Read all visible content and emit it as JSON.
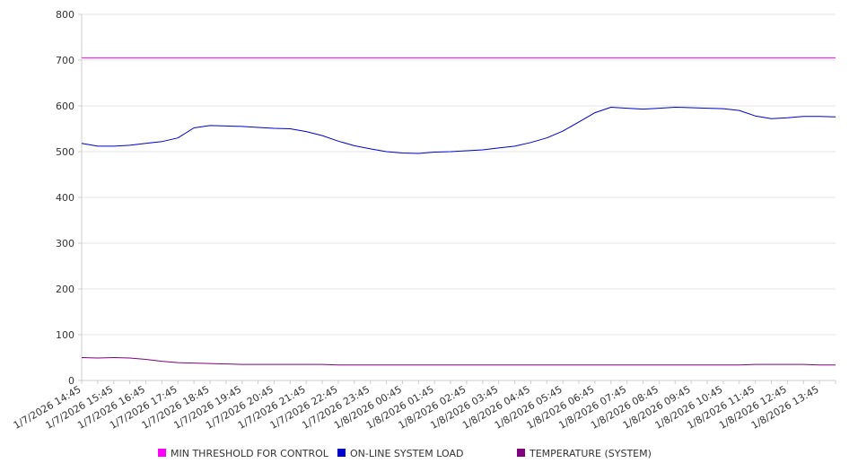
{
  "chart_data": {
    "type": "line",
    "ylim": [
      0,
      800
    ],
    "y_ticks": [
      "0",
      "100",
      "200",
      "300",
      "400",
      "500",
      "600",
      "700",
      "800"
    ],
    "x_tick_labels": [
      "1/7/2026 14:45",
      "1/7/2026 15:45",
      "1/7/2026 16:45",
      "1/7/2026 17:45",
      "1/7/2026 18:45",
      "1/7/2026 19:45",
      "1/7/2026 20:45",
      "1/7/2026 21:45",
      "1/7/2026 22:45",
      "1/7/2026 23:45",
      "1/8/2026 00:45",
      "1/8/2026 01:45",
      "1/8/2026 02:45",
      "1/8/2026 03:45",
      "1/8/2026 04:45",
      "1/8/2026 05:45",
      "1/8/2026 06:45",
      "1/8/2026 07:45",
      "1/8/2026 08:45",
      "1/8/2026 09:45",
      "1/8/2026 10:45",
      "1/8/2026 11:45",
      "1/8/2026 12:45",
      "1/8/2026 13:45"
    ],
    "x_points": [
      "1/7/2026 14:45",
      "1/7/2026 15:15",
      "1/7/2026 15:45",
      "1/7/2026 16:15",
      "1/7/2026 16:45",
      "1/7/2026 17:15",
      "1/7/2026 17:45",
      "1/7/2026 18:15",
      "1/7/2026 18:45",
      "1/7/2026 19:15",
      "1/7/2026 19:45",
      "1/7/2026 20:15",
      "1/7/2026 20:45",
      "1/7/2026 21:15",
      "1/7/2026 21:45",
      "1/7/2026 22:15",
      "1/7/2026 22:45",
      "1/7/2026 23:15",
      "1/7/2026 23:45",
      "1/8/2026 00:15",
      "1/8/2026 00:45",
      "1/8/2026 01:15",
      "1/8/2026 01:45",
      "1/8/2026 02:15",
      "1/8/2026 02:45",
      "1/8/2026 03:15",
      "1/8/2026 03:45",
      "1/8/2026 04:15",
      "1/8/2026 04:45",
      "1/8/2026 05:15",
      "1/8/2026 05:45",
      "1/8/2026 06:15",
      "1/8/2026 06:45",
      "1/8/2026 07:15",
      "1/8/2026 07:45",
      "1/8/2026 08:15",
      "1/8/2026 08:45",
      "1/8/2026 09:15",
      "1/8/2026 09:45",
      "1/8/2026 10:15",
      "1/8/2026 10:45",
      "1/8/2026 11:15",
      "1/8/2026 11:45",
      "1/8/2026 12:15",
      "1/8/2026 12:45",
      "1/8/2026 13:15",
      "1/8/2026 13:45",
      "1/8/2026 14:15"
    ],
    "grid": true,
    "legend_position": "bottom",
    "series": [
      {
        "name": "MIN THRESHOLD FOR CONTROL",
        "color": "#ff00ff",
        "values": [
          705,
          705,
          705,
          705,
          705,
          705,
          705,
          705,
          705,
          705,
          705,
          705,
          705,
          705,
          705,
          705,
          705,
          705,
          705,
          705,
          705,
          705,
          705,
          705,
          705,
          705,
          705,
          705,
          705,
          705,
          705,
          705,
          705,
          705,
          705,
          705,
          705,
          705,
          705,
          705,
          705,
          705,
          705,
          705,
          705,
          705,
          705,
          705
        ]
      },
      {
        "name": "ON-LINE SYSTEM LOAD",
        "color": "#0000cc",
        "values": [
          518,
          512,
          512,
          514,
          518,
          522,
          530,
          552,
          557,
          556,
          555,
          553,
          551,
          550,
          544,
          535,
          523,
          513,
          506,
          500,
          497,
          496,
          499,
          500,
          502,
          504,
          508,
          512,
          520,
          530,
          545,
          565,
          585,
          597,
          595,
          593,
          595,
          597,
          596,
          595,
          594,
          590,
          578,
          572,
          574,
          577,
          577,
          576
        ]
      },
      {
        "name": "TEMPERATURE (SYSTEM)",
        "color": "#800080",
        "values": [
          50,
          49,
          50,
          49,
          46,
          42,
          39,
          38,
          37,
          36,
          35,
          35,
          35,
          35,
          35,
          35,
          34,
          34,
          34,
          34,
          34,
          34,
          34,
          34,
          34,
          34,
          34,
          34,
          34,
          34,
          34,
          34,
          34,
          34,
          34,
          34,
          34,
          34,
          34,
          34,
          34,
          34,
          35,
          35,
          35,
          35,
          34,
          34
        ]
      }
    ]
  }
}
